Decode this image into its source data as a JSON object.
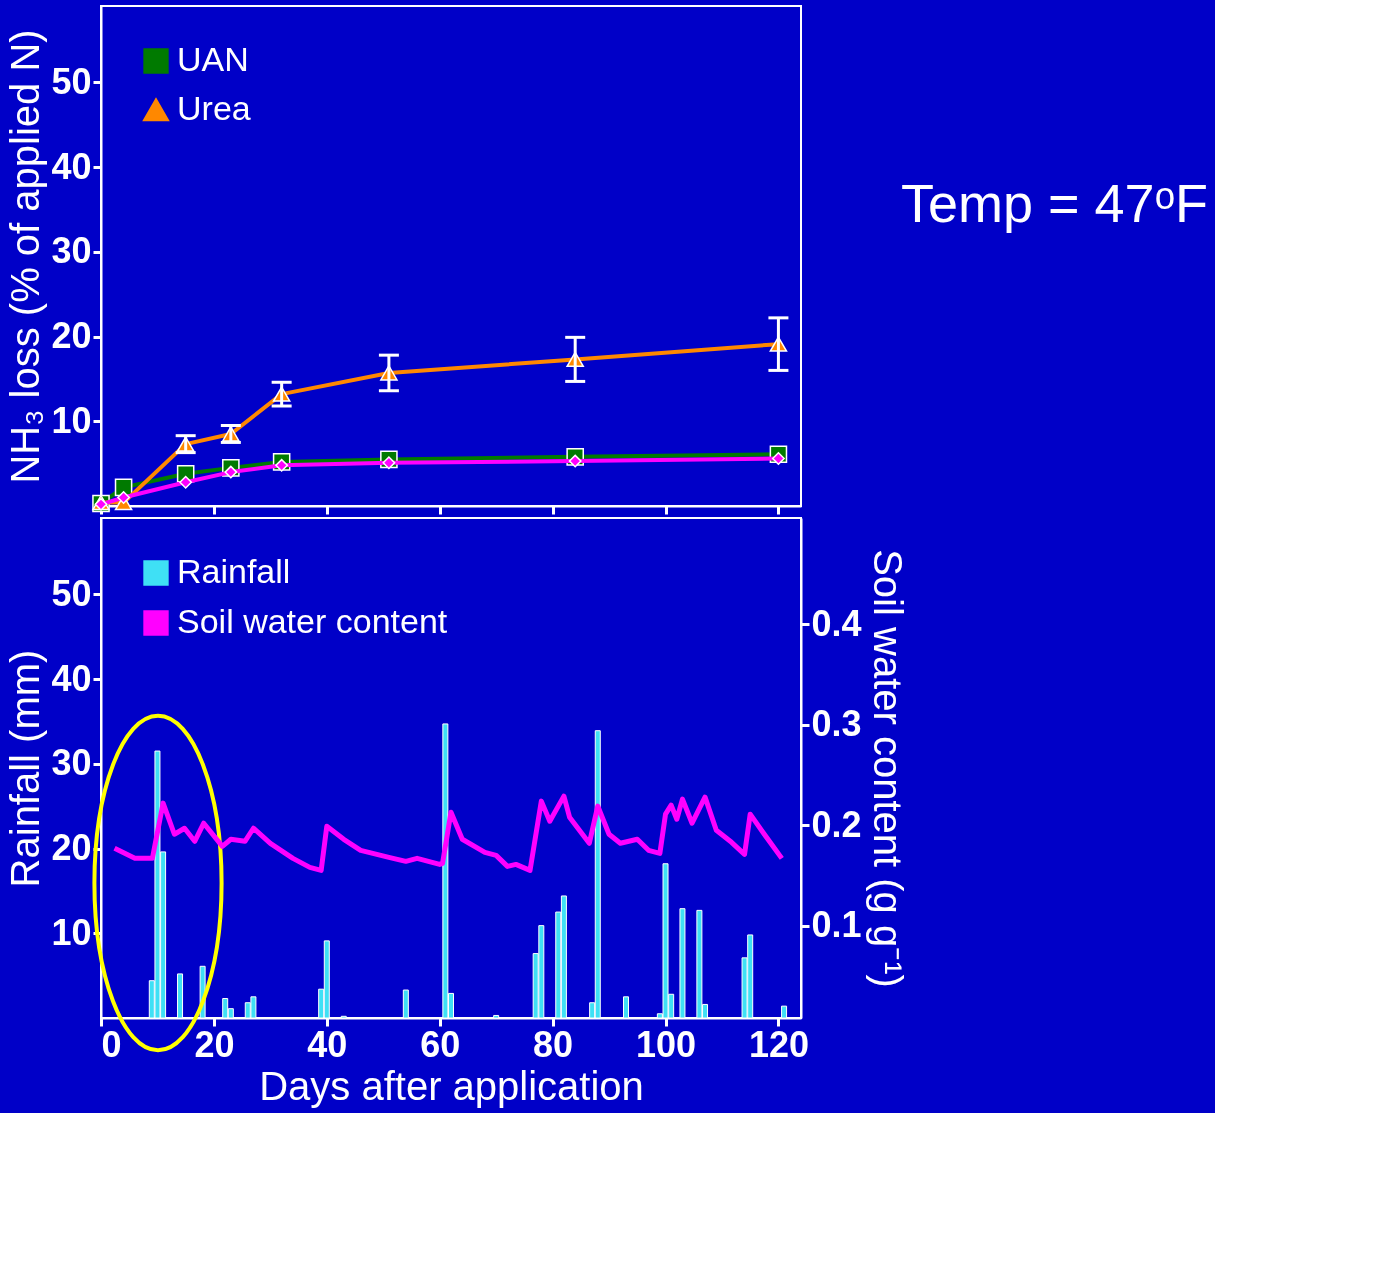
{
  "chart_data": [
    {
      "type": "line",
      "ylabel": "NH₃ loss (% of applied N)",
      "xlim": [
        0,
        124
      ],
      "xticks": [
        0,
        20,
        40,
        60,
        80,
        100,
        120
      ],
      "ylim": [
        0,
        59
      ],
      "yticks": [
        10,
        20,
        30,
        40,
        50
      ],
      "tick_labels": "y",
      "legend": "top left",
      "grid": false,
      "line_style": "solid",
      "x": [
        0,
        4,
        15,
        23,
        32,
        51,
        84,
        120
      ],
      "annotations": [
        "Temp = 47ᵒF"
      ],
      "series": [
        {
          "color": "#ff00ff",
          "marker": "diamond",
          "values": [
            0.2,
            1.0,
            2.8,
            4.0,
            4.8,
            5.1,
            5.3,
            5.6
          ]
        },
        {
          "name": "UAN",
          "color": "#007a00",
          "marker": "square",
          "values": [
            0.3,
            2.2,
            3.8,
            4.5,
            5.2,
            5.5,
            5.8,
            6.1
          ]
        },
        {
          "name": "Urea",
          "color": "#ff8800",
          "marker": "triangle",
          "values": [
            0.4,
            0.4,
            7.3,
            8.5,
            13.2,
            15.7,
            17.3,
            19.1
          ],
          "errors": [
            null,
            null,
            1.0,
            1.0,
            1.4,
            2.1,
            2.6,
            3.1
          ]
        }
      ]
    },
    {
      "type": "bar",
      "xlabel": "Days after application",
      "ylabel": "Rainfall (mm)",
      "y2label": "Soil water content (g g⁻¹)",
      "xlim": [
        0,
        124
      ],
      "xticks": [
        0,
        20,
        40,
        60,
        80,
        100,
        120
      ],
      "ylim": [
        0,
        59
      ],
      "yticks": [
        10,
        20,
        30,
        40,
        50
      ],
      "y2lim": [
        0.008,
        0.506
      ],
      "y2ticks": [
        0.1,
        0.2,
        0.3,
        0.4
      ],
      "legend": "top left",
      "grid": false,
      "series": [
        {
          "name": "Rainfall",
          "type": "bar",
          "color": "#3fe0f5",
          "x": [
            9,
            10,
            11,
            14,
            18,
            22,
            23,
            26,
            27,
            39,
            40,
            43,
            54,
            61,
            62,
            70,
            77,
            78,
            81,
            82,
            87,
            88,
            93,
            99,
            100,
            101,
            103,
            106,
            107,
            114,
            115,
            121
          ],
          "values": [
            4.4,
            31.5,
            19.6,
            5.2,
            6.1,
            2.3,
            1.1,
            1.8,
            2.5,
            3.4,
            9.1,
            0.2,
            3.3,
            34.7,
            2.9,
            0.3,
            7.6,
            10.9,
            12.5,
            14.4,
            1.8,
            33.9,
            2.5,
            0.5,
            18.2,
            2.8,
            12.9,
            12.7,
            1.6,
            7.1,
            9.8,
            1.4
          ]
        },
        {
          "name": "Soil water content",
          "type": "line",
          "axis": "y2",
          "color": "#ff00ff",
          "x": [
            2.4,
            6,
            9.1,
            11,
            13,
            14.8,
            16.6,
            18.2,
            21.5,
            23,
            25.5,
            27,
            30,
            34,
            37,
            39,
            40,
            43,
            46,
            51,
            54,
            56,
            60,
            60.5,
            62,
            64,
            68,
            70,
            72,
            73.5,
            76,
            78,
            79.5,
            82,
            83,
            86.5,
            88,
            90,
            92,
            95,
            97,
            99,
            100,
            101,
            102,
            103,
            104.7,
            107,
            109,
            111.7,
            114,
            115,
            117.5,
            120.6
          ],
          "values": [
            0.177,
            0.167,
            0.167,
            0.222,
            0.191,
            0.197,
            0.184,
            0.202,
            0.179,
            0.186,
            0.184,
            0.197,
            0.182,
            0.167,
            0.158,
            0.155,
            0.199,
            0.186,
            0.175,
            0.168,
            0.164,
            0.167,
            0.161,
            0.162,
            0.213,
            0.186,
            0.173,
            0.17,
            0.159,
            0.161,
            0.155,
            0.224,
            0.204,
            0.229,
            0.208,
            0.182,
            0.219,
            0.191,
            0.182,
            0.186,
            0.175,
            0.172,
            0.211,
            0.22,
            0.206,
            0.226,
            0.202,
            0.228,
            0.195,
            0.183,
            0.171,
            0.211,
            0.191,
            0.167
          ]
        }
      ]
    }
  ]
}
